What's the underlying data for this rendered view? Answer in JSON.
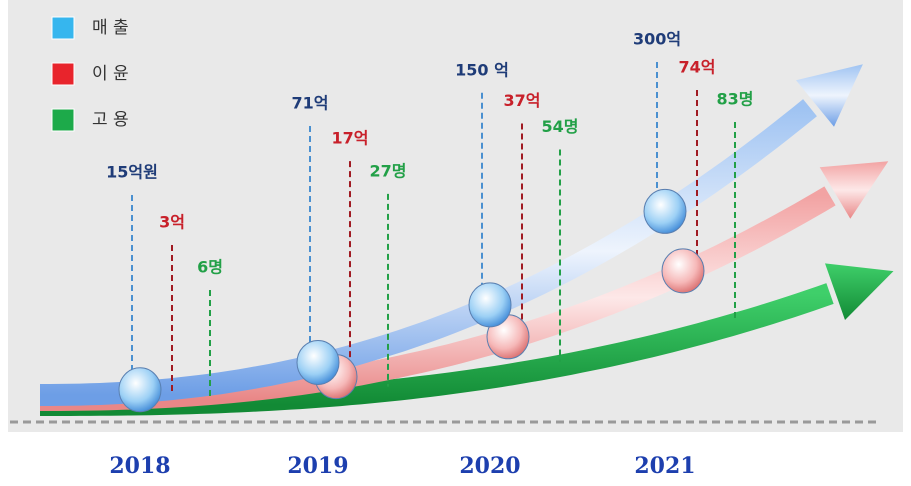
{
  "chart_data": {
    "type": "line",
    "categories": [
      "2018",
      "2019",
      "2020",
      "2021"
    ],
    "series": [
      {
        "name": "매 출",
        "color": "#1f3c78",
        "values": [
          15,
          71,
          150,
          300
        ],
        "value_labels": [
          "15억원",
          "71억",
          "150 억",
          "300억"
        ]
      },
      {
        "name": "이 윤",
        "color": "#c8202a",
        "values": [
          3,
          17,
          37,
          74
        ],
        "value_labels": [
          "3억",
          "17억",
          "37억",
          "74억"
        ]
      },
      {
        "name": "고 용",
        "color": "#22a047",
        "values": [
          6,
          27,
          54,
          83
        ],
        "value_labels": [
          "6명",
          "27명",
          "54명",
          "83명"
        ]
      }
    ]
  }
}
